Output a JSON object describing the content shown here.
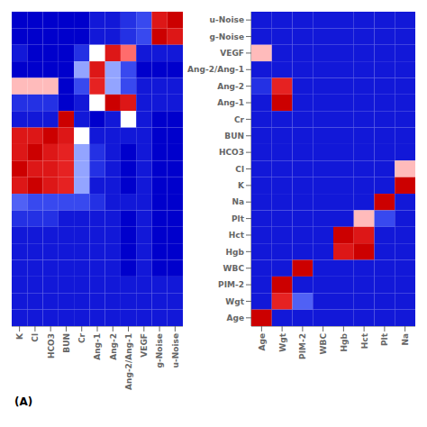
{
  "chart_data": [
    {
      "type": "heatmap",
      "x": [
        "K",
        "Cl",
        "HCO3",
        "BUN",
        "Cr",
        "Ang-1",
        "Ang-2",
        "Ang-2/Ang-1",
        "VEGF",
        "g-Noise",
        "u-Noise"
      ],
      "tick_labels": "x",
      "annotation": "(A)",
      "color_scale": {
        "range": [
          0.15,
          1.0
        ],
        "center": 0.5,
        "stops": [
          [
            0.0,
            "#0000cc"
          ],
          [
            0.2,
            "#3344ee"
          ],
          [
            0.4,
            "#7788ff"
          ],
          [
            0.47,
            "#bbccff"
          ],
          [
            0.5,
            "#ffffff"
          ],
          [
            0.55,
            "#ffbbbb"
          ],
          [
            0.7,
            "#ff4444"
          ],
          [
            1.0,
            "#cc0000"
          ]
        ]
      },
      "values": [
        [
          0.15,
          0.15,
          0.15,
          0.15,
          0.15,
          0.2,
          0.2,
          0.25,
          0.3,
          0.9,
          1.0
        ],
        [
          0.15,
          0.15,
          0.15,
          0.15,
          0.15,
          0.2,
          0.2,
          0.25,
          0.3,
          1.0,
          0.9
        ],
        [
          0.2,
          0.15,
          0.15,
          0.15,
          0.25,
          0.5,
          0.9,
          0.65,
          0.2,
          0.2,
          0.2
        ],
        [
          0.15,
          0.15,
          0.15,
          0.15,
          0.45,
          0.9,
          0.45,
          0.3,
          0.15,
          0.15,
          0.15
        ],
        [
          0.55,
          0.55,
          0.55,
          0.15,
          0.3,
          0.85,
          0.45,
          0.3,
          0.2,
          0.2,
          0.2
        ],
        [
          0.25,
          0.25,
          0.25,
          0.15,
          0.2,
          0.5,
          1.0,
          0.9,
          0.2,
          0.2,
          0.2
        ],
        [
          0.2,
          0.2,
          0.2,
          1.0,
          0.2,
          0.15,
          0.2,
          0.5,
          0.2,
          0.15,
          0.15
        ],
        [
          0.9,
          0.9,
          1.0,
          0.9,
          0.5,
          0.2,
          0.2,
          0.2,
          0.2,
          0.15,
          0.15
        ],
        [
          0.9,
          1.0,
          0.9,
          0.85,
          0.45,
          0.25,
          0.2,
          0.15,
          0.2,
          0.15,
          0.15
        ],
        [
          1.0,
          0.9,
          0.9,
          0.85,
          0.45,
          0.25,
          0.2,
          0.15,
          0.2,
          0.15,
          0.15
        ],
        [
          0.9,
          1.0,
          0.9,
          0.85,
          0.45,
          0.2,
          0.2,
          0.15,
          0.2,
          0.15,
          0.15
        ],
        [
          0.35,
          0.3,
          0.3,
          0.3,
          0.3,
          0.25,
          0.2,
          0.2,
          0.2,
          0.15,
          0.15
        ],
        [
          0.25,
          0.25,
          0.25,
          0.2,
          0.2,
          0.2,
          0.2,
          0.15,
          0.2,
          0.15,
          0.15
        ],
        [
          0.2,
          0.2,
          0.2,
          0.2,
          0.2,
          0.2,
          0.2,
          0.15,
          0.2,
          0.15,
          0.15
        ],
        [
          0.2,
          0.2,
          0.2,
          0.2,
          0.2,
          0.2,
          0.2,
          0.15,
          0.2,
          0.15,
          0.15
        ],
        [
          0.2,
          0.2,
          0.2,
          0.2,
          0.2,
          0.2,
          0.2,
          0.15,
          0.2,
          0.15,
          0.15
        ],
        [
          0.2,
          0.2,
          0.2,
          0.2,
          0.2,
          0.2,
          0.2,
          0.2,
          0.2,
          0.2,
          0.2
        ],
        [
          0.2,
          0.2,
          0.2,
          0.2,
          0.2,
          0.2,
          0.2,
          0.2,
          0.2,
          0.2,
          0.2
        ],
        [
          0.2,
          0.2,
          0.2,
          0.2,
          0.2,
          0.2,
          0.2,
          0.2,
          0.2,
          0.2,
          0.2
        ]
      ]
    },
    {
      "type": "heatmap",
      "x": [
        "Age",
        "Wgt",
        "PIM-2",
        "WBC",
        "Hgb",
        "Hct",
        "Plt",
        "Na"
      ],
      "y": [
        "u-Noise",
        "g-Noise",
        "VEGF",
        "Ang-2/Ang-1",
        "Ang-2",
        "Ang-1",
        "Cr",
        "BUN",
        "HCO3",
        "Cl",
        "K",
        "Na",
        "Plt",
        "Hct",
        "Hgb",
        "WBC",
        "PIM-2",
        "Wgt",
        "Age"
      ],
      "color_scale": {
        "range": [
          0.15,
          1.0
        ],
        "center": 0.5,
        "stops": [
          [
            0.0,
            "#0000cc"
          ],
          [
            0.2,
            "#3344ee"
          ],
          [
            0.4,
            "#7788ff"
          ],
          [
            0.47,
            "#bbccff"
          ],
          [
            0.5,
            "#ffffff"
          ],
          [
            0.55,
            "#ffbbbb"
          ],
          [
            0.7,
            "#ff4444"
          ],
          [
            1.0,
            "#cc0000"
          ]
        ]
      },
      "values": [
        [
          0.2,
          0.2,
          0.2,
          0.2,
          0.2,
          0.2,
          0.2,
          0.2
        ],
        [
          0.2,
          0.2,
          0.2,
          0.2,
          0.2,
          0.2,
          0.2,
          0.2
        ],
        [
          0.55,
          0.2,
          0.2,
          0.2,
          0.2,
          0.2,
          0.2,
          0.2
        ],
        [
          0.2,
          0.2,
          0.2,
          0.2,
          0.2,
          0.2,
          0.2,
          0.2
        ],
        [
          0.25,
          0.85,
          0.2,
          0.2,
          0.2,
          0.2,
          0.2,
          0.2
        ],
        [
          0.2,
          1.0,
          0.2,
          0.2,
          0.2,
          0.2,
          0.2,
          0.2
        ],
        [
          0.2,
          0.2,
          0.2,
          0.2,
          0.2,
          0.2,
          0.2,
          0.2
        ],
        [
          0.2,
          0.2,
          0.2,
          0.2,
          0.2,
          0.2,
          0.2,
          0.2
        ],
        [
          0.2,
          0.2,
          0.2,
          0.2,
          0.2,
          0.2,
          0.2,
          0.2
        ],
        [
          0.2,
          0.2,
          0.2,
          0.2,
          0.2,
          0.2,
          0.2,
          0.55
        ],
        [
          0.2,
          0.2,
          0.2,
          0.2,
          0.2,
          0.2,
          0.2,
          1.0
        ],
        [
          0.2,
          0.2,
          0.2,
          0.2,
          0.2,
          0.2,
          1.0,
          0.2
        ],
        [
          0.2,
          0.2,
          0.2,
          0.2,
          0.2,
          0.55,
          0.3,
          0.2
        ],
        [
          0.2,
          0.2,
          0.2,
          0.2,
          1.0,
          0.9,
          0.2,
          0.2
        ],
        [
          0.2,
          0.2,
          0.2,
          0.2,
          0.9,
          1.0,
          0.2,
          0.2
        ],
        [
          0.2,
          0.2,
          1.0,
          0.2,
          0.2,
          0.2,
          0.2,
          0.2
        ],
        [
          0.2,
          1.0,
          0.2,
          0.2,
          0.2,
          0.2,
          0.2,
          0.2
        ],
        [
          0.2,
          0.85,
          0.35,
          0.2,
          0.2,
          0.2,
          0.2,
          0.2
        ],
        [
          1.0,
          0.2,
          0.2,
          0.2,
          0.2,
          0.2,
          0.2,
          0.2
        ]
      ]
    }
  ]
}
